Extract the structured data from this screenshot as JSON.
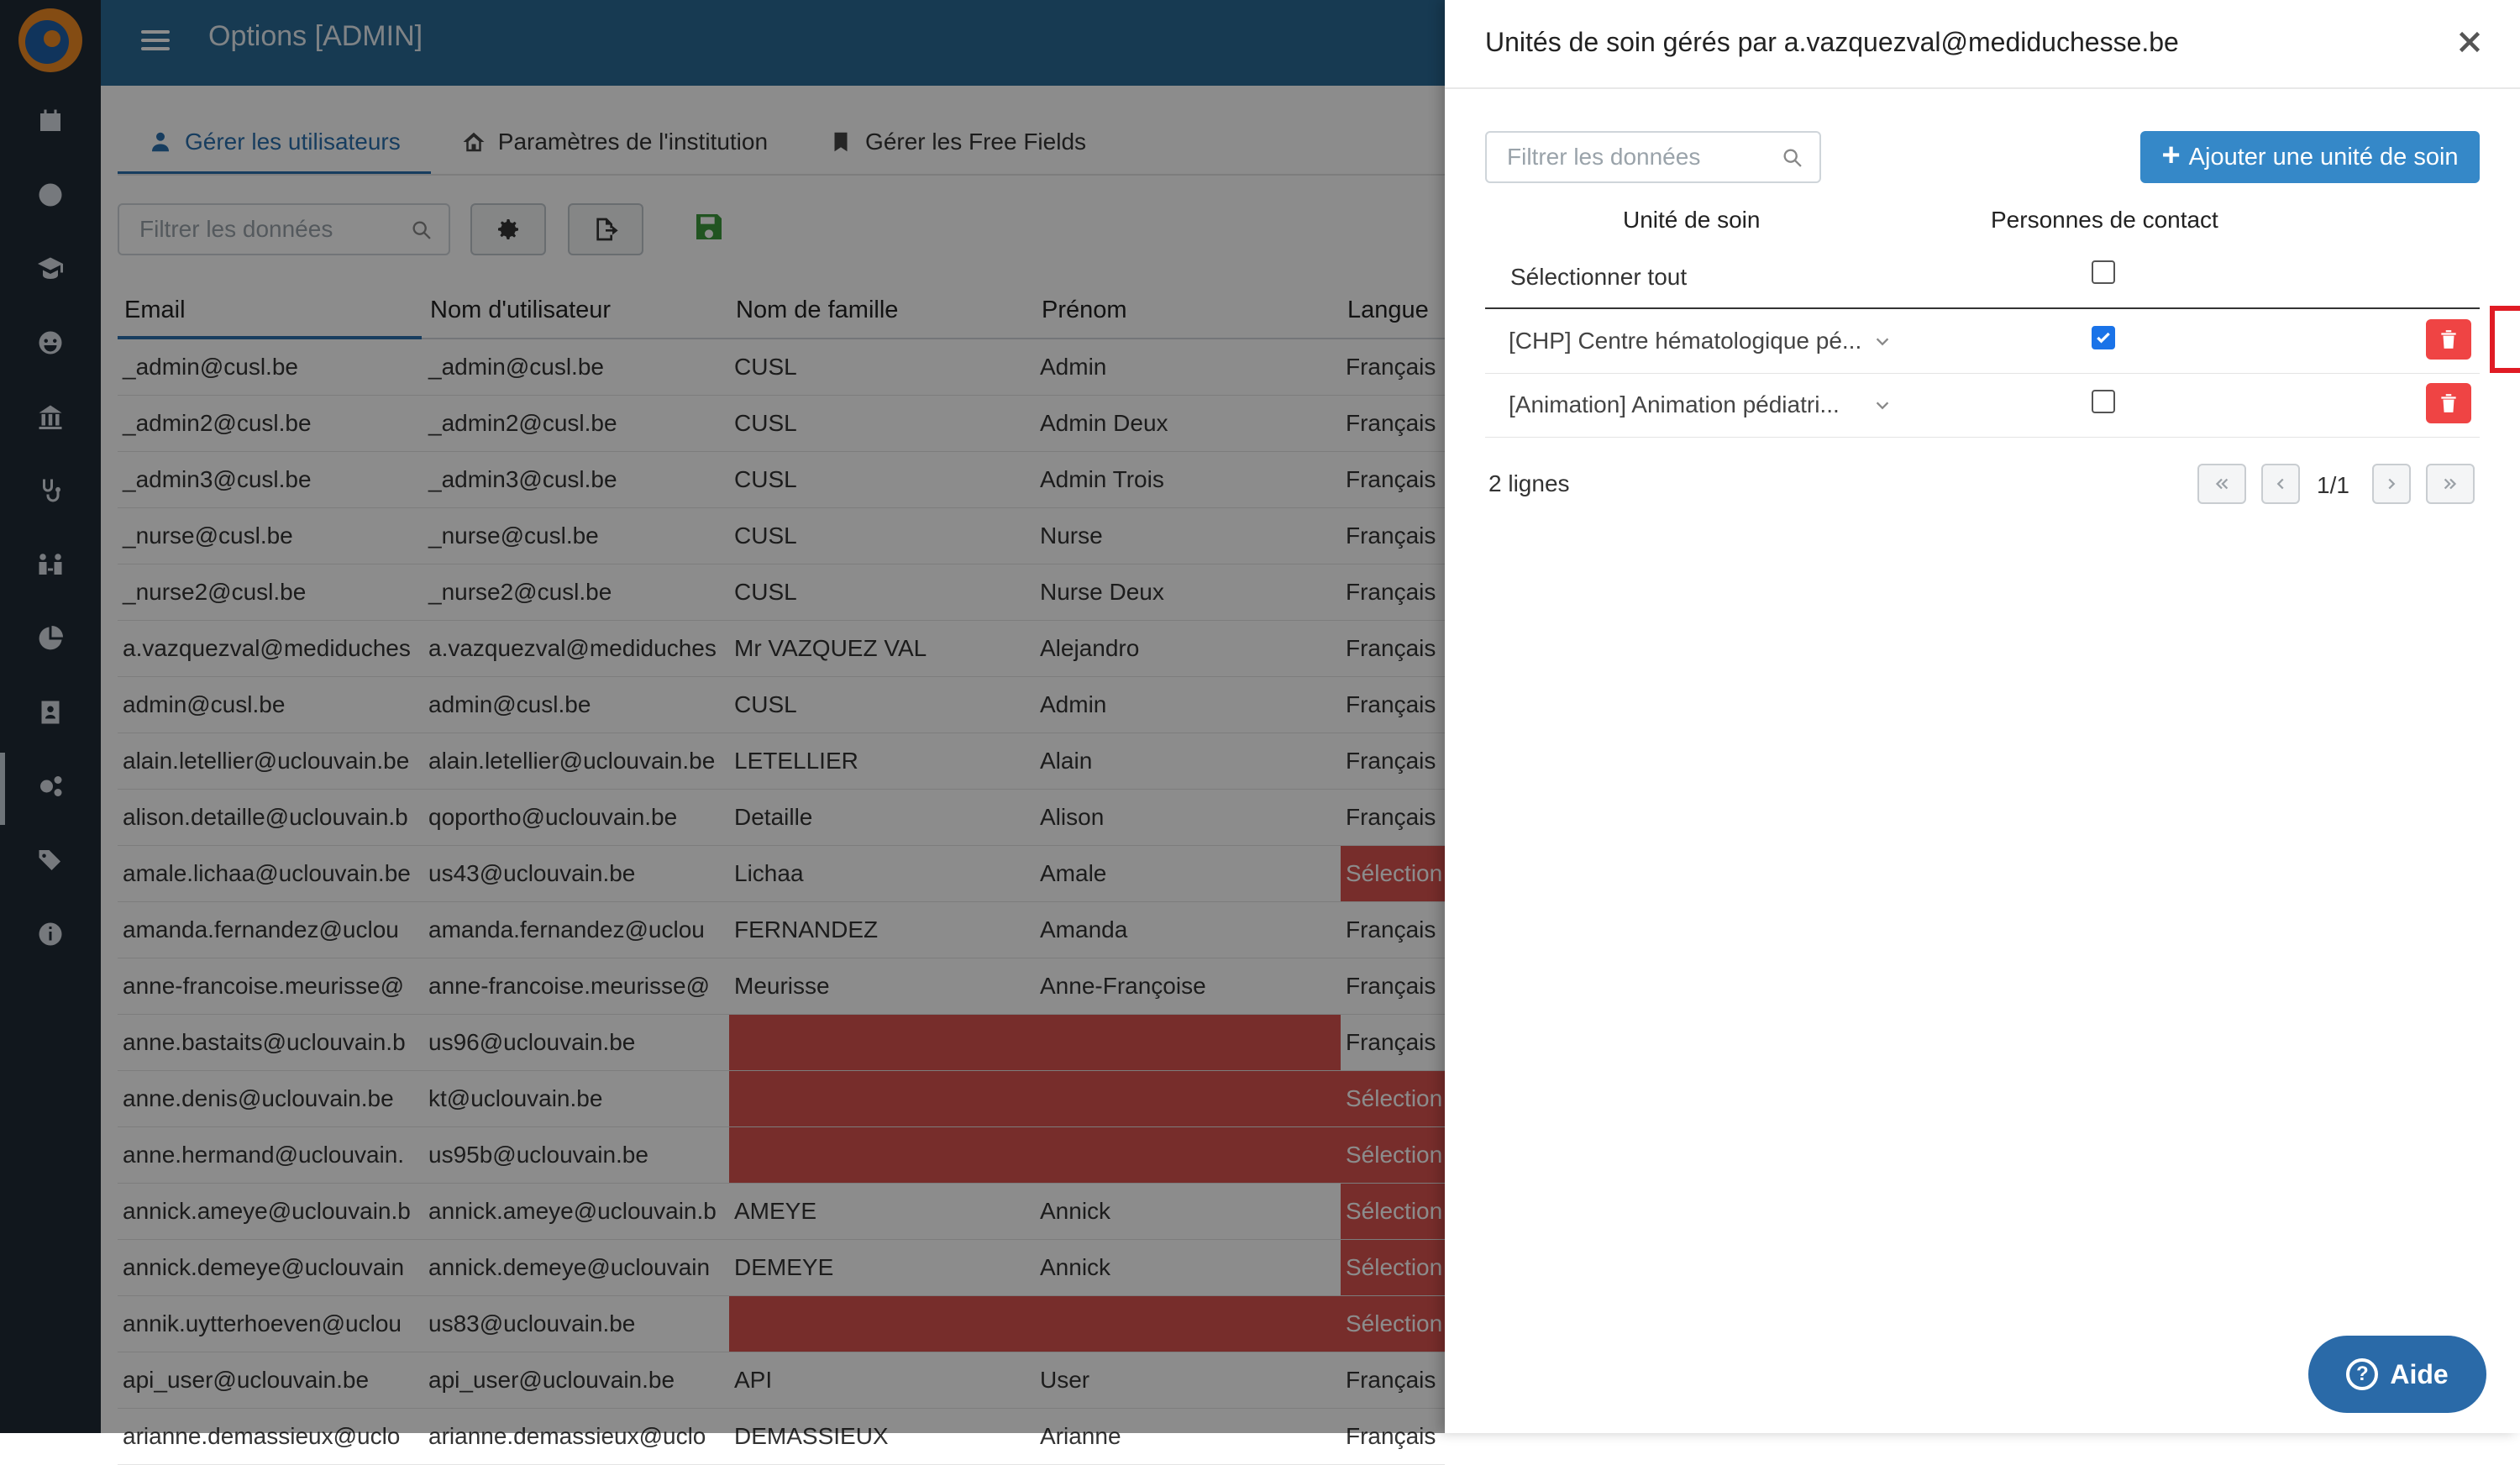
{
  "header": {
    "title": "Options [ADMIN]"
  },
  "tabs": [
    {
      "label": "Gérer les utilisateurs"
    },
    {
      "label": "Paramètres de l'institution"
    },
    {
      "label": "Gérer les Free Fields"
    }
  ],
  "toolbar": {
    "filter_placeholder": "Filtrer les données"
  },
  "table": {
    "columns": [
      "Email",
      "Nom d'utilisateur",
      "Nom de famille",
      "Prénom",
      "Langue"
    ],
    "rows": [
      [
        "_admin@cusl.be",
        "_admin@cusl.be",
        "CUSL",
        "Admin",
        "Français"
      ],
      [
        "_admin2@cusl.be",
        "_admin2@cusl.be",
        "CUSL",
        "Admin Deux",
        "Français"
      ],
      [
        "_admin3@cusl.be",
        "_admin3@cusl.be",
        "CUSL",
        "Admin Trois",
        "Français"
      ],
      [
        "_nurse@cusl.be",
        "_nurse@cusl.be",
        "CUSL",
        "Nurse",
        "Français"
      ],
      [
        "_nurse2@cusl.be",
        "_nurse2@cusl.be",
        "CUSL",
        "Nurse Deux",
        "Français"
      ],
      [
        "a.vazquezval@mediduches",
        "a.vazquezval@mediduches",
        "Mr VAZQUEZ VAL",
        "Alejandro",
        "Français"
      ],
      [
        "admin@cusl.be",
        "admin@cusl.be",
        "CUSL",
        "Admin",
        "Français"
      ],
      [
        "alain.letellier@uclouvain.be",
        "alain.letellier@uclouvain.be",
        "LETELLIER",
        "Alain",
        "Français"
      ],
      [
        "alison.detaille@uclouvain.b",
        "qoportho@uclouvain.be",
        "Detaille",
        "Alison",
        "Français"
      ],
      [
        "amale.lichaa@uclouvain.be",
        "us43@uclouvain.be",
        "Lichaa",
        "Amale",
        "Sélection"
      ],
      [
        "amanda.fernandez@uclou",
        "amanda.fernandez@uclou",
        "FERNANDEZ",
        "Amanda",
        "Français"
      ],
      [
        "anne-francoise.meurisse@",
        "anne-francoise.meurisse@",
        "Meurisse",
        "Anne-Françoise",
        "Français"
      ],
      [
        "anne.bastaits@uclouvain.b",
        "us96@uclouvain.be",
        "",
        "",
        "Français"
      ],
      [
        "anne.denis@uclouvain.be",
        "kt@uclouvain.be",
        "",
        "",
        "Sélection"
      ],
      [
        "anne.hermand@uclouvain.",
        "us95b@uclouvain.be",
        "",
        "",
        "Sélection"
      ],
      [
        "annick.ameye@uclouvain.b",
        "annick.ameye@uclouvain.b",
        "AMEYE",
        "Annick",
        "Sélection"
      ],
      [
        "annick.demeye@uclouvain",
        "annick.demeye@uclouvain",
        "DEMEYE",
        "Annick",
        "Sélection"
      ],
      [
        "annik.uytterhoeven@uclou",
        "us83@uclouvain.be",
        "",
        "",
        "Sélection"
      ],
      [
        "api_user@uclouvain.be",
        "api_user@uclouvain.be",
        "API",
        "User",
        "Français"
      ],
      [
        "arianne.demassieux@uclo",
        "arianne.demassieux@uclo",
        "DEMASSIEUX",
        "Arianne",
        "Français"
      ]
    ]
  },
  "drawer": {
    "title": "Unités de soin gérés par a.vazquezval@mediduchesse.be",
    "filter_placeholder": "Filtrer les données",
    "add_button": "Ajouter une unité de soin",
    "col_unit": "Unité de soin",
    "col_contact": "Personnes de contact",
    "select_all": "Sélectionner tout",
    "units": [
      {
        "label": "[CHP] Centre hématologique pé...",
        "contact_checked": true
      },
      {
        "label": "[Animation] Animation pédiatri...",
        "contact_checked": false
      }
    ],
    "count": "2 lignes",
    "pagination": "1/1"
  },
  "help": {
    "label": "Aide"
  },
  "colors": {
    "accent": "#2a6fae",
    "error_row": "#d9534f",
    "delete": "#ef4444",
    "highlight": "#e01b24"
  }
}
